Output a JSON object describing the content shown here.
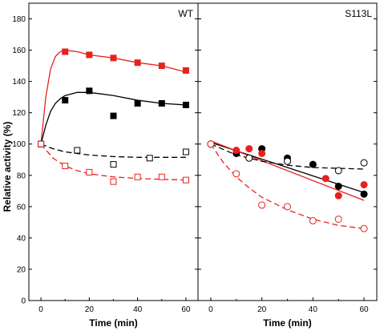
{
  "chart_data": {
    "type": "scatter",
    "ylabel": "Relative activity (%)",
    "ylim": [
      0,
      190
    ],
    "yticks": [
      "0",
      "20",
      "40",
      "60",
      "80",
      "100",
      "120",
      "140",
      "160",
      "180"
    ],
    "panels": [
      {
        "label": "WT",
        "xlabel": "Time (min)",
        "xlim": [
          -5,
          65
        ],
        "xticks": [
          "0",
          "20",
          "40",
          "60"
        ],
        "series": [
          {
            "color": "#e8201e",
            "marker": "square-filled",
            "line": "solid",
            "x": [
              0,
              10,
              20,
              30,
              40,
              50,
              60
            ],
            "y": [
              100,
              159,
              157,
              155,
              152,
              150,
              147
            ],
            "fit": {
              "x": [
                0,
                2,
                4,
                6,
                8,
                10,
                15,
                20,
                30,
                40,
                50,
                60
              ],
              "y": [
                100,
                130,
                148,
                156,
                159,
                160,
                159,
                157,
                155,
                152,
                150,
                146
              ]
            }
          },
          {
            "color": "#000000",
            "marker": "square-filled",
            "line": "solid",
            "x": [
              0,
              10,
              20,
              30,
              40,
              50,
              60
            ],
            "y": [
              100,
              128,
              134,
              118,
              126,
              126,
              125
            ],
            "fit": {
              "x": [
                0,
                2,
                4,
                6,
                8,
                10,
                15,
                20,
                30,
                40,
                50,
                60
              ],
              "y": [
                100,
                112,
                121,
                126,
                129,
                131,
                133,
                133,
                131,
                128,
                126,
                125
              ]
            }
          },
          {
            "color": "#000000",
            "marker": "square-open",
            "line": "dashed",
            "x": [
              0,
              15,
              30,
              45,
              60
            ],
            "y": [
              100,
              96,
              87,
              91,
              95
            ],
            "fit": {
              "x": [
                0,
                5,
                10,
                15,
                20,
                30,
                40,
                50,
                60
              ],
              "y": [
                100,
                97,
                95,
                94,
                93,
                92,
                91.5,
                91.5,
                91.5
              ]
            }
          },
          {
            "color": "#e8201e",
            "marker": "square-open",
            "line": "dashed",
            "x": [
              0,
              10,
              20,
              30,
              40,
              50,
              60
            ],
            "y": [
              100,
              86,
              82,
              76,
              79,
              79,
              77
            ],
            "fit": {
              "x": [
                0,
                5,
                10,
                15,
                20,
                30,
                40,
                50,
                60
              ],
              "y": [
                100,
                91,
                86,
                83,
                81,
                79,
                78,
                77.5,
                77
              ]
            }
          }
        ]
      },
      {
        "label": "S113L",
        "xlabel": "Time (min)",
        "xlim": [
          -5,
          65
        ],
        "xticks": [
          "0",
          "20",
          "40",
          "60"
        ],
        "series": [
          {
            "color": "#000000",
            "marker": "circle-filled",
            "line": "solid",
            "x": [
              0,
              10,
              20,
              30,
              40,
              50,
              60
            ],
            "y": [
              100,
              94,
              97,
              91,
              87,
              73,
              68
            ],
            "fit": {
              "x": [
                0,
                60
              ],
              "y": [
                101,
                69
              ]
            }
          },
          {
            "color": "#e8201e",
            "marker": "circle-filled",
            "line": "solid",
            "x": [
              0,
              10,
              15,
              20,
              30,
              45,
              50,
              60
            ],
            "y": [
              100,
              96,
              97,
              94,
              89,
              78,
              67,
              74
            ],
            "fit": {
              "x": [
                0,
                60
              ],
              "y": [
                102,
                64
              ]
            }
          },
          {
            "color": "#000000",
            "marker": "circle-open",
            "line": "dashed",
            "x": [
              0,
              15,
              30,
              50,
              60
            ],
            "y": [
              100,
              91,
              89,
              83,
              88
            ],
            "fit": {
              "x": [
                0,
                10,
                20,
                30,
                40,
                50,
                60
              ],
              "y": [
                100,
                93,
                89,
                86.5,
                85,
                84.5,
                84
              ]
            }
          },
          {
            "color": "#e8201e",
            "marker": "circle-open",
            "line": "dashed",
            "x": [
              0,
              10,
              20,
              30,
              40,
              50,
              60
            ],
            "y": [
              100,
              81,
              61,
              60,
              51,
              52,
              46
            ],
            "fit": {
              "x": [
                0,
                5,
                10,
                15,
                20,
                25,
                30,
                40,
                50,
                60
              ],
              "y": [
                100,
                88,
                79,
                72,
                66,
                62,
                58,
                52,
                48,
                46
              ]
            }
          }
        ]
      }
    ]
  }
}
